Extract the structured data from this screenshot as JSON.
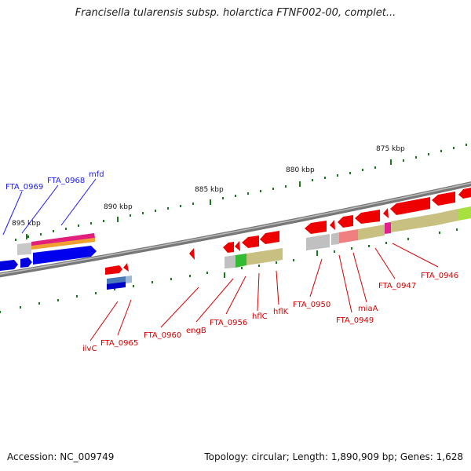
{
  "title": "Francisella tularensis subsp. holarctica FTNF002-00, complet...",
  "footer": {
    "accession": "Accession: NC_009749",
    "summary": "Topology: circular; Length: 1,890,909 bp; Genes: 1,628"
  },
  "scale_labels": [
    "875 kbp",
    "880 kbp",
    "885 kbp",
    "890 kbp",
    "895 kbp"
  ],
  "colors": {
    "forward_label": "#1a1aff",
    "reverse_label": "#d40000",
    "backbone": "#888888",
    "tick": "#1a7a1a"
  },
  "gene_labels": {
    "forward": [
      "FTA_0969",
      "FTA_0968",
      "mfd"
    ],
    "reverse": [
      "ilvC",
      "FTA_0965",
      "FTA_0960",
      "engB",
      "FTA_0956",
      "hflC",
      "hflK",
      "FTA_0950",
      "FTA_0949",
      "miaA",
      "FTA_0947",
      "FTA_0946"
    ]
  }
}
